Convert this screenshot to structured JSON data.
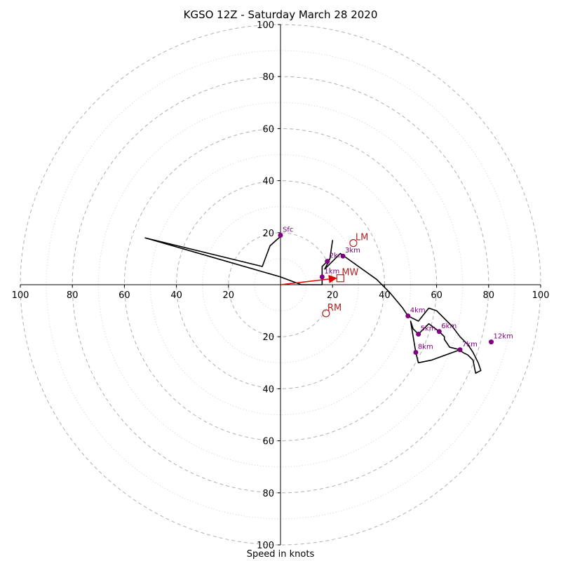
{
  "title": "KGSO 12Z - Saturday March 28 2020",
  "xlabel": "Speed in knots",
  "chart_data": {
    "type": "hodograph",
    "title": "KGSO 12Z - Saturday March 28 2020",
    "xlabel": "Speed in knots",
    "max_speed": 100,
    "ring_major_step": 20,
    "ring_minor_offset": 10,
    "x_tick_labels": [
      "100",
      "80",
      "60",
      "40",
      "20",
      "20",
      "40",
      "60",
      "80",
      "100"
    ],
    "y_tick_labels": [
      "100",
      "80",
      "60",
      "40",
      "20",
      "20",
      "40",
      "60",
      "80",
      "100"
    ],
    "grid": true,
    "trace_color": "#000000",
    "label_color": "#800080",
    "vector_color": "#b22222",
    "trace": [
      [
        0.5,
        19
      ],
      [
        -4,
        15
      ],
      [
        -7,
        7
      ],
      [
        -52,
        18
      ],
      [
        0,
        3
      ],
      [
        8,
        0
      ],
      [
        16,
        0
      ],
      [
        16,
        7
      ],
      [
        19,
        10
      ],
      [
        20,
        17
      ],
      [
        19,
        10
      ],
      [
        17,
        6
      ],
      [
        23,
        12
      ],
      [
        30,
        7
      ],
      [
        37,
        2
      ],
      [
        42,
        -3
      ],
      [
        47,
        -9
      ],
      [
        49,
        -12
      ],
      [
        53,
        -14
      ],
      [
        57,
        -9
      ],
      [
        60,
        -10
      ],
      [
        64,
        -14
      ],
      [
        66,
        -16
      ],
      [
        69,
        -20
      ],
      [
        72,
        -23
      ],
      [
        74,
        -26
      ],
      [
        76,
        -30
      ],
      [
        77,
        -33
      ],
      [
        75,
        -34
      ],
      [
        74,
        -29
      ],
      [
        72,
        -27
      ],
      [
        70,
        -26
      ],
      [
        69,
        -25
      ],
      [
        65,
        -24
      ],
      [
        63,
        -21
      ],
      [
        63,
        -20
      ],
      [
        61,
        -18
      ],
      [
        57,
        -15
      ],
      [
        53,
        -19
      ],
      [
        51,
        -17
      ],
      [
        50,
        -14
      ],
      [
        52,
        -26
      ],
      [
        53,
        -30
      ],
      [
        58,
        -29
      ],
      [
        69,
        -25
      ]
    ],
    "height_labels": [
      {
        "label": "Sfc",
        "u": 0,
        "v": 19
      },
      {
        "label": "1km",
        "u": 16,
        "v": 3
      },
      {
        "label": "2km",
        "u": 18,
        "v": 9
      },
      {
        "label": "3km",
        "u": 24,
        "v": 11
      },
      {
        "label": "4km",
        "u": 49,
        "v": -12
      },
      {
        "label": "5km",
        "u": 53,
        "v": -19
      },
      {
        "label": "6km",
        "u": 61,
        "v": -18
      },
      {
        "label": "7km",
        "u": 69,
        "v": -25
      },
      {
        "label": "8km",
        "u": 52,
        "v": -26
      },
      {
        "label": "12km",
        "u": 81,
        "v": -22
      }
    ],
    "storm_motion": {
      "LM": {
        "label": "LM",
        "u": 28,
        "v": 16
      },
      "MW": {
        "label": "MW",
        "u": 23,
        "v": 2.5
      },
      "RM": {
        "label": "RM",
        "u": 17.5,
        "v": -11
      }
    },
    "shear_vector": {
      "from": [
        0,
        0
      ],
      "to": [
        23,
        2.5
      ]
    }
  }
}
